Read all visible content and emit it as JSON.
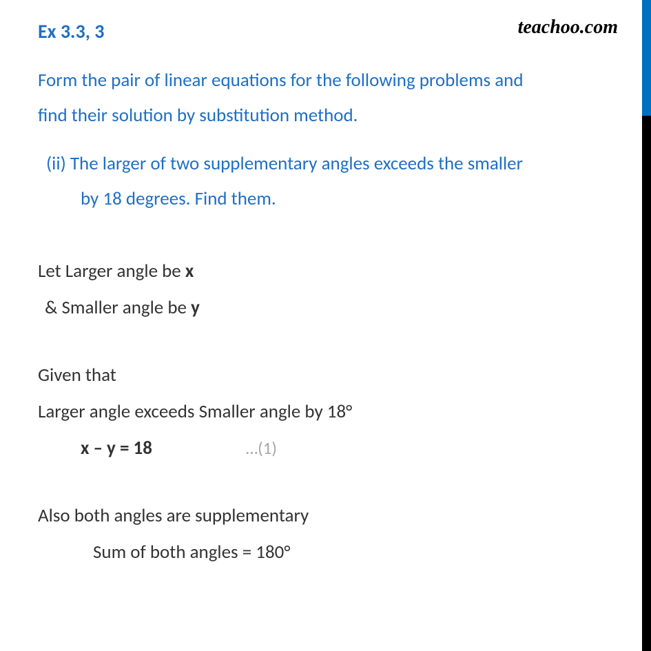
{
  "watermark": "teachoo.com",
  "heading": "Ex 3.3, 3",
  "problem_intro_line1": "Form the pair of linear equations for the following problems and",
  "problem_intro_line2": "find their solution by substitution method.",
  "problem_sub_line1": "(ii) The larger of two supplementary angles exceeds the smaller",
  "problem_sub_line2": "by 18 degrees. Find them.",
  "sol_line1_pre": "Let Larger angle be ",
  "sol_line1_bold": "x",
  "sol_line2_pre": " & Smaller angle be ",
  "sol_line2_bold": "y",
  "sol_line3": "Given that",
  "sol_line4": "Larger angle exceeds Smaller angle by 18°",
  "sol_eq1": "x – y = 18",
  "sol_eq1_label": "…(1)",
  "sol_line5": "Also both angles are supplementary",
  "sol_line6": "Sum of both angles = 180°",
  "colors": {
    "heading": "#1f6fc4",
    "body_text": "#333333",
    "eq_label": "#a6a6a6",
    "border_blue": "#0070c0",
    "border_black": "#000000",
    "background": "#ffffff"
  },
  "font_sizes": {
    "heading": 28,
    "body": 27,
    "watermark": 28,
    "eq_label": 25
  }
}
